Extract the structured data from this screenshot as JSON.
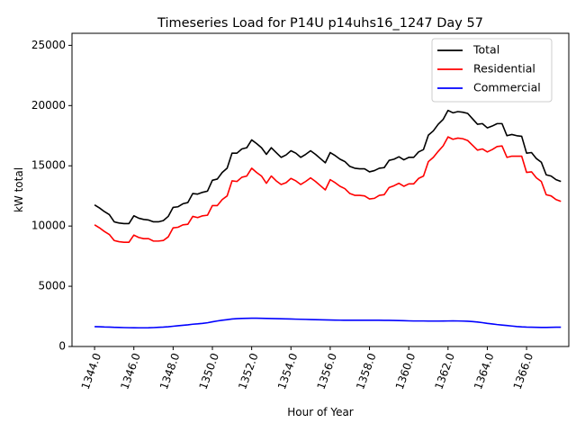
{
  "chart_data": {
    "type": "line",
    "title": "Timeseries Load for P14U p14uhs16_1247  Day 57",
    "xlabel": "Hour of Year",
    "ylabel": "kW total",
    "xlim": [
      1342.85,
      1368.15
    ],
    "ylim": [
      0,
      26000
    ],
    "x_start": 1344.0,
    "x_step": 0.25,
    "xticks": [
      1344,
      1346,
      1348,
      1350,
      1352,
      1354,
      1356,
      1358,
      1360,
      1362,
      1364,
      1366
    ],
    "xtick_labels": [
      "1344.0",
      "1346.0",
      "1348.0",
      "1350.0",
      "1352.0",
      "1354.0",
      "1356.0",
      "1358.0",
      "1360.0",
      "1362.0",
      "1364.0",
      "1366.0"
    ],
    "yticks": [
      0,
      5000,
      10000,
      15000,
      20000,
      25000
    ],
    "ytick_labels": [
      "0",
      "5000",
      "10000",
      "15000",
      "20000",
      "25000"
    ],
    "legend_position": "top-right",
    "series": [
      {
        "name": "Total",
        "color": "#000000",
        "values": [
          11750,
          11500,
          11200,
          10950,
          10350,
          10250,
          10200,
          10200,
          10850,
          10650,
          10550,
          10500,
          10350,
          10350,
          10450,
          10800,
          11550,
          11600,
          11850,
          11950,
          12700,
          12650,
          12800,
          12900,
          13800,
          13900,
          14450,
          14800,
          16050,
          16050,
          16400,
          16500,
          17150,
          16850,
          16500,
          15950,
          16500,
          16100,
          15700,
          15900,
          16250,
          16050,
          15700,
          15950,
          16250,
          15950,
          15600,
          15250,
          16100,
          15850,
          15550,
          15350,
          14950,
          14800,
          14750,
          14750,
          14500,
          14600,
          14800,
          14850,
          15450,
          15550,
          15750,
          15500,
          15700,
          15700,
          16150,
          16350,
          17550,
          17900,
          18450,
          18850,
          19600,
          19400,
          19500,
          19450,
          19350,
          18900,
          18450,
          18500,
          18150,
          18300,
          18500,
          18500,
          17500,
          17600,
          17500,
          17450,
          16050,
          16100,
          15600,
          15300,
          14250,
          14150,
          13850,
          13700
        ]
      },
      {
        "name": "Residential",
        "color": "#ff0000",
        "values": [
          10100,
          9850,
          9550,
          9300,
          8800,
          8700,
          8650,
          8650,
          9250,
          9050,
          8950,
          8950,
          8750,
          8750,
          8800,
          9100,
          9850,
          9900,
          10100,
          10150,
          10800,
          10700,
          10850,
          10900,
          11700,
          11700,
          12200,
          12500,
          13750,
          13700,
          14050,
          14150,
          14800,
          14450,
          14150,
          13550,
          14150,
          13750,
          13450,
          13600,
          13950,
          13750,
          13450,
          13700,
          14000,
          13700,
          13350,
          13000,
          13850,
          13600,
          13300,
          13100,
          12700,
          12550,
          12550,
          12500,
          12250,
          12300,
          12550,
          12600,
          13200,
          13350,
          13550,
          13300,
          13500,
          13500,
          13950,
          14150,
          15350,
          15700,
          16200,
          16650,
          17400,
          17200,
          17300,
          17250,
          17100,
          16700,
          16300,
          16400,
          16150,
          16350,
          16600,
          16650,
          15700,
          15800,
          15800,
          15800,
          14450,
          14500,
          14000,
          13700,
          12600,
          12500,
          12200,
          12050
        ]
      },
      {
        "name": "Commercial",
        "color": "#0000ff",
        "values": [
          1650,
          1640,
          1620,
          1610,
          1590,
          1580,
          1570,
          1560,
          1555,
          1550,
          1550,
          1555,
          1570,
          1590,
          1610,
          1640,
          1680,
          1720,
          1760,
          1800,
          1850,
          1880,
          1920,
          1970,
          2050,
          2120,
          2180,
          2230,
          2280,
          2310,
          2330,
          2340,
          2350,
          2350,
          2340,
          2330,
          2320,
          2310,
          2300,
          2290,
          2280,
          2270,
          2260,
          2250,
          2240,
          2230,
          2220,
          2210,
          2200,
          2190,
          2185,
          2180,
          2180,
          2180,
          2180,
          2180,
          2180,
          2180,
          2180,
          2175,
          2170,
          2160,
          2150,
          2140,
          2130,
          2120,
          2120,
          2120,
          2110,
          2110,
          2110,
          2115,
          2120,
          2130,
          2120,
          2110,
          2100,
          2070,
          2030,
          1980,
          1920,
          1870,
          1820,
          1780,
          1740,
          1700,
          1660,
          1630,
          1610,
          1600,
          1590,
          1580,
          1580,
          1590,
          1600,
          1600
        ]
      }
    ]
  }
}
